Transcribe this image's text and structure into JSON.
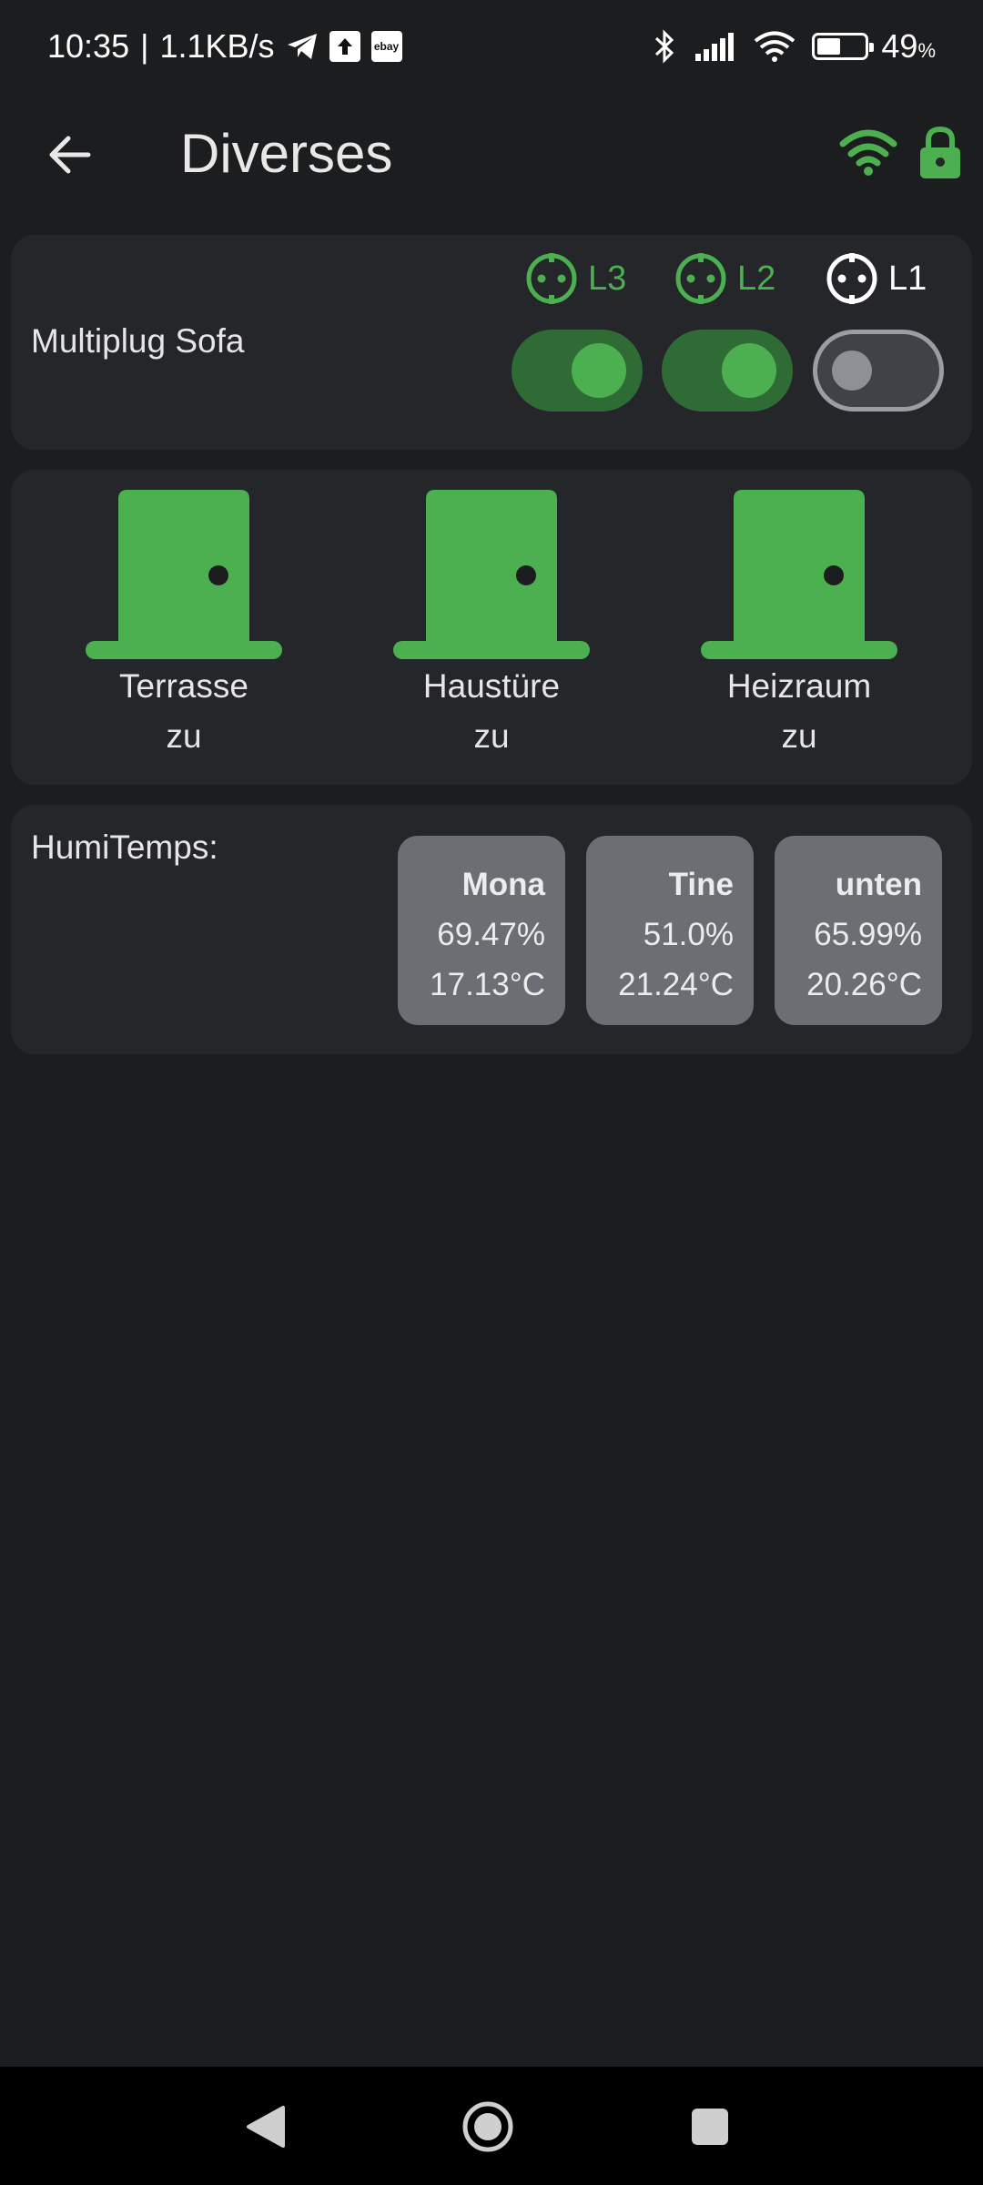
{
  "status_bar": {
    "time": "10:35",
    "separator": "|",
    "network_speed": "1.1KB/s",
    "battery_percent": "49",
    "battery_unit": "%",
    "battery_level": 0.49,
    "icons": [
      "telegram-icon",
      "upload-icon",
      "ebay-icon",
      "bluetooth-icon",
      "signal-icon",
      "wifi-icon",
      "battery-icon"
    ],
    "ebay_label": "ebay"
  },
  "app_bar": {
    "title": "Diverses",
    "accent_color": "#4caf50"
  },
  "multiplug": {
    "label": "Multiplug Sofa",
    "plugs": [
      {
        "label": "L3",
        "state": true
      },
      {
        "label": "L2",
        "state": true
      },
      {
        "label": "L1",
        "state": false
      }
    ]
  },
  "doors": [
    {
      "name": "Terrasse",
      "status": "zu"
    },
    {
      "name": "Haustüre",
      "status": "zu"
    },
    {
      "name": "Heizraum",
      "status": "zu"
    }
  ],
  "humitemps": {
    "label": "HumiTemps:",
    "sensors": [
      {
        "name": "Mona",
        "humidity": "69.47%",
        "temperature": "17.13°C"
      },
      {
        "name": "Tine",
        "humidity": "51.0%",
        "temperature": "21.24°C"
      },
      {
        "name": "unten",
        "humidity": "65.99%",
        "temperature": "20.26°C"
      }
    ]
  }
}
